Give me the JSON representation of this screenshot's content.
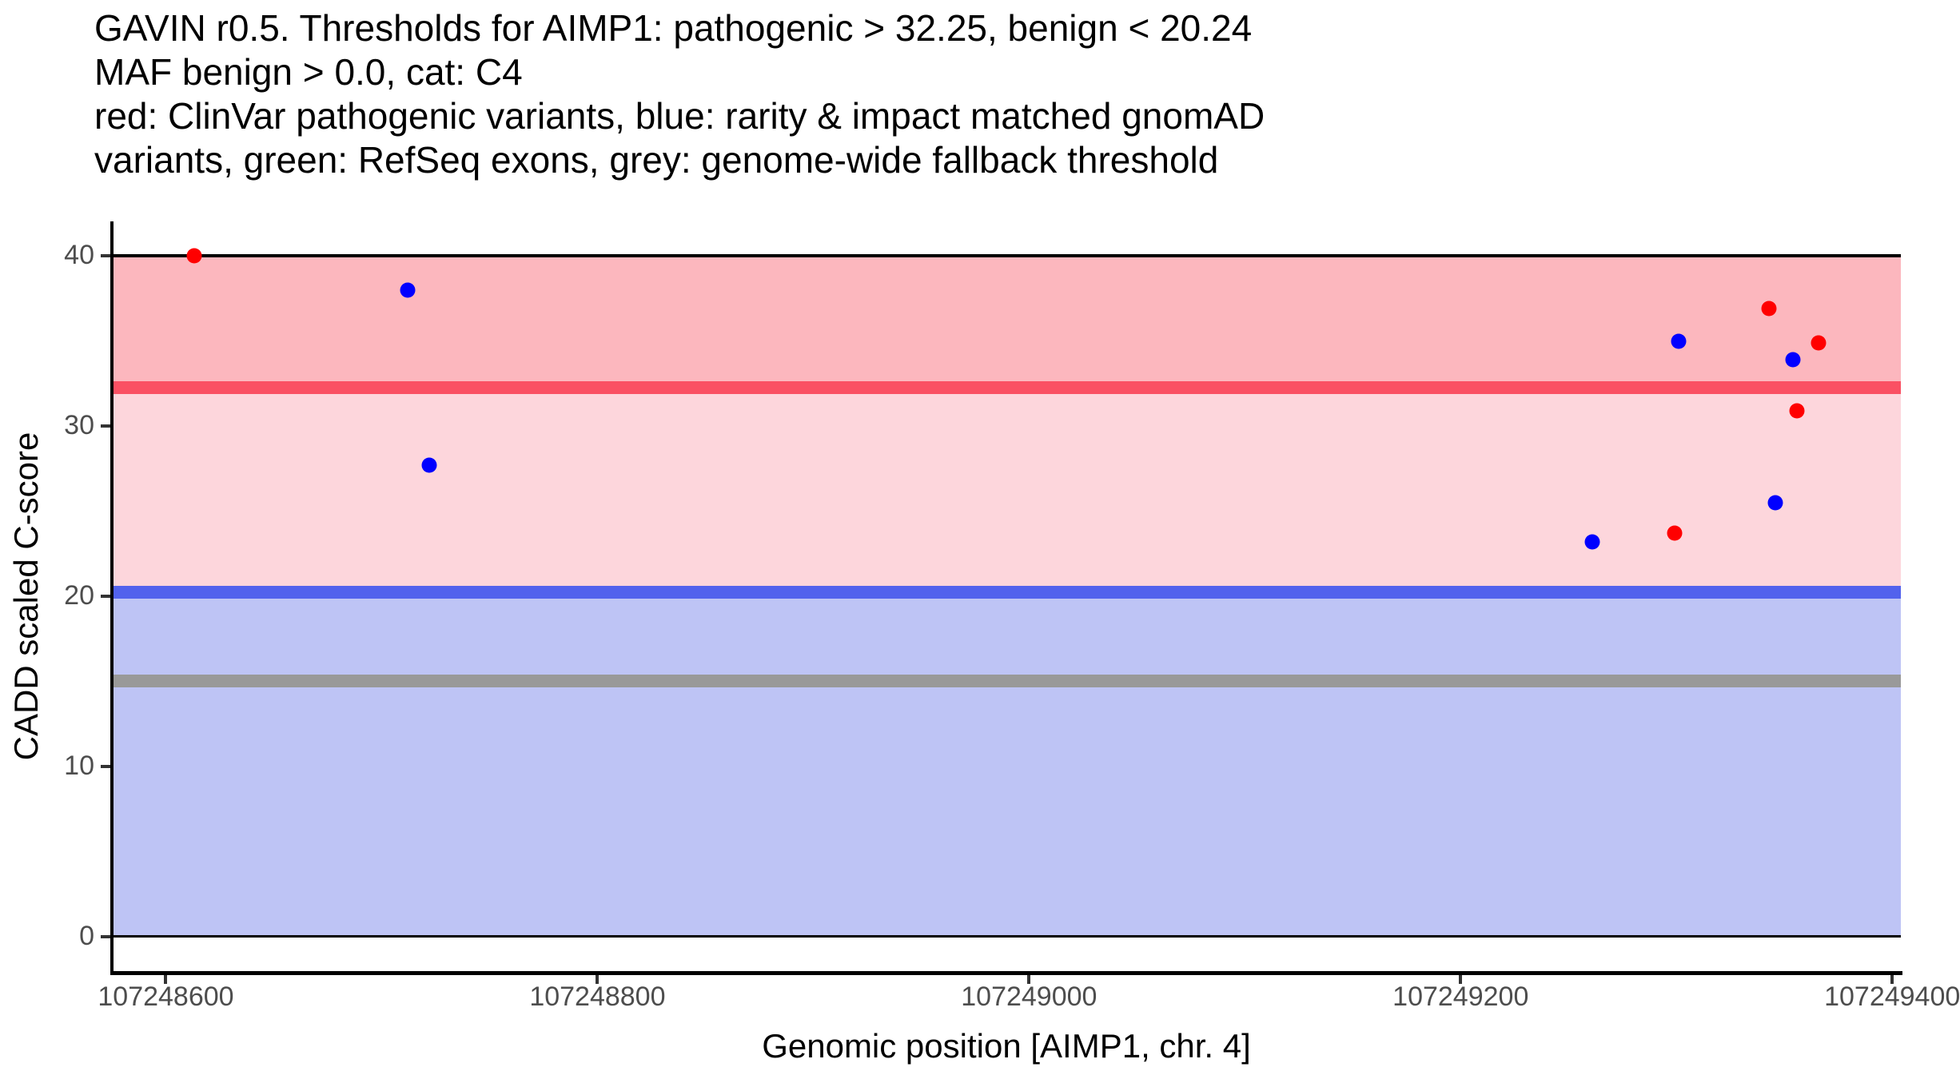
{
  "title": {
    "lines": [
      "GAVIN r0.5. Thresholds for AIMP1: pathogenic > 32.25, benign < 20.24",
      "MAF benign > 0.0, cat: C4",
      "red: ClinVar pathogenic variants, blue: rarity & impact matched gnomAD",
      "variants, green: RefSeq exons, grey: genome-wide fallback threshold"
    ]
  },
  "chart_data": {
    "type": "scatter",
    "title": "GAVIN r0.5. Thresholds for AIMP1: pathogenic > 32.25, benign < 20.24; MAF benign > 0.0, cat: C4",
    "xlabel": "Genomic position [AIMP1, chr. 4]",
    "ylabel": "CADD scaled C-score",
    "x_axis": {
      "range": [
        107248575,
        107249404
      ],
      "ticks": [
        107248600,
        107248800,
        107249000,
        107249200,
        107249400
      ],
      "tick_labels": [
        "107248600",
        "107248800",
        "107249000",
        "107249200",
        "107249400"
      ]
    },
    "y_axis": {
      "range": [
        -2.02,
        42.02
      ],
      "ticks": [
        0,
        10,
        20,
        30,
        40
      ],
      "tick_labels": [
        "0",
        "10",
        "20",
        "30",
        "40"
      ]
    },
    "grid": false,
    "legend": "described in title text",
    "regions": [
      {
        "name": "pathogenic-zone",
        "from": 32.25,
        "to": 40,
        "color": "#FCB7BE"
      },
      {
        "name": "intermediate-zone",
        "from": 20.24,
        "to": 32.25,
        "color": "#FDD6DC"
      },
      {
        "name": "benign-zone",
        "from": 0,
        "to": 20.24,
        "color": "#BEC4F5"
      }
    ],
    "thresholds": [
      {
        "name": "pathogenic-threshold",
        "value": 32.25,
        "color": "#FA5063"
      },
      {
        "name": "benign-threshold",
        "value": 20.24,
        "color": "#5262ED"
      },
      {
        "name": "genome-wide-fallback-threshold",
        "value": 15,
        "color": "#999999"
      }
    ],
    "boundary_lines": [
      {
        "name": "upper-boundary",
        "value": 40,
        "color": "#000000",
        "thickness": 4
      },
      {
        "name": "lower-boundary",
        "value": 0,
        "color": "#000000",
        "thickness": 3
      }
    ],
    "series": [
      {
        "name": "ClinVar pathogenic variants",
        "color": "#FF0000",
        "points": [
          {
            "pos": 107248613,
            "cadd": 40.0
          },
          {
            "pos": 107249343,
            "cadd": 36.9
          },
          {
            "pos": 107249366,
            "cadd": 34.9
          },
          {
            "pos": 107249356,
            "cadd": 30.9
          },
          {
            "pos": 107249299,
            "cadd": 23.7
          }
        ]
      },
      {
        "name": "rarity & impact matched gnomAD variants",
        "color": "#0000FF",
        "points": [
          {
            "pos": 107248712,
            "cadd": 38.0
          },
          {
            "pos": 107248722,
            "cadd": 27.7
          },
          {
            "pos": 107249301,
            "cadd": 35.0
          },
          {
            "pos": 107249354,
            "cadd": 33.9
          },
          {
            "pos": 107249346,
            "cadd": 25.5
          },
          {
            "pos": 107249261,
            "cadd": 23.2
          }
        ]
      }
    ]
  }
}
